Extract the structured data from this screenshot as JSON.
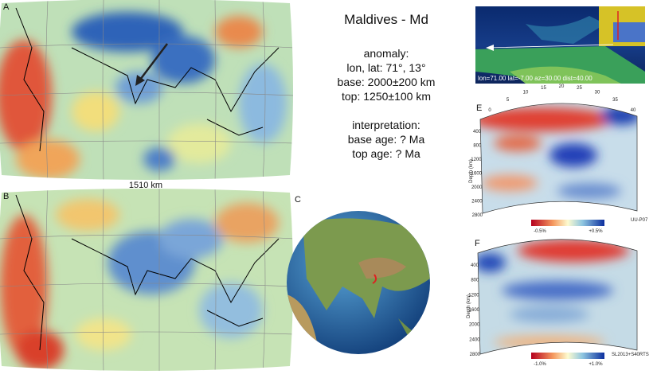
{
  "panels": {
    "a": {
      "label": "A",
      "scale": "1510 km"
    },
    "b": {
      "label": "B"
    },
    "c": {
      "label": "C"
    }
  },
  "info": {
    "title": "Maldives - Md",
    "anomaly_heading": "anomaly:",
    "anomaly_lines": [
      "lon, lat: 71°, 13°",
      "base: 2000±200 km",
      "top: 1250±100 km"
    ],
    "interpretation_heading": "interpretation:",
    "interpretation_lines": [
      "base age: ? Ma",
      "top age: ? Ma"
    ]
  },
  "inset": {
    "caption": "lon=71.00 lat=-7.00 az=30.00 dist=40.00"
  },
  "section_e": {
    "label": "E",
    "xticks": [
      0,
      5,
      10,
      15,
      20,
      25,
      30,
      35,
      40
    ],
    "yticks": [
      400,
      800,
      1200,
      1600,
      2000,
      2400,
      2800
    ],
    "ylabel": "Depth (km)",
    "cbar_min": "-0.5%",
    "cbar_max": "+0.5%",
    "model": "UU-P07"
  },
  "section_f": {
    "label": "F",
    "yticks": [
      400,
      800,
      1200,
      1600,
      2000,
      2400,
      2800
    ],
    "ylabel": "Depth (km)",
    "cbar_min": "-1.0%",
    "cbar_max": "+1.0%",
    "model": "SL2013+S40RTS"
  }
}
